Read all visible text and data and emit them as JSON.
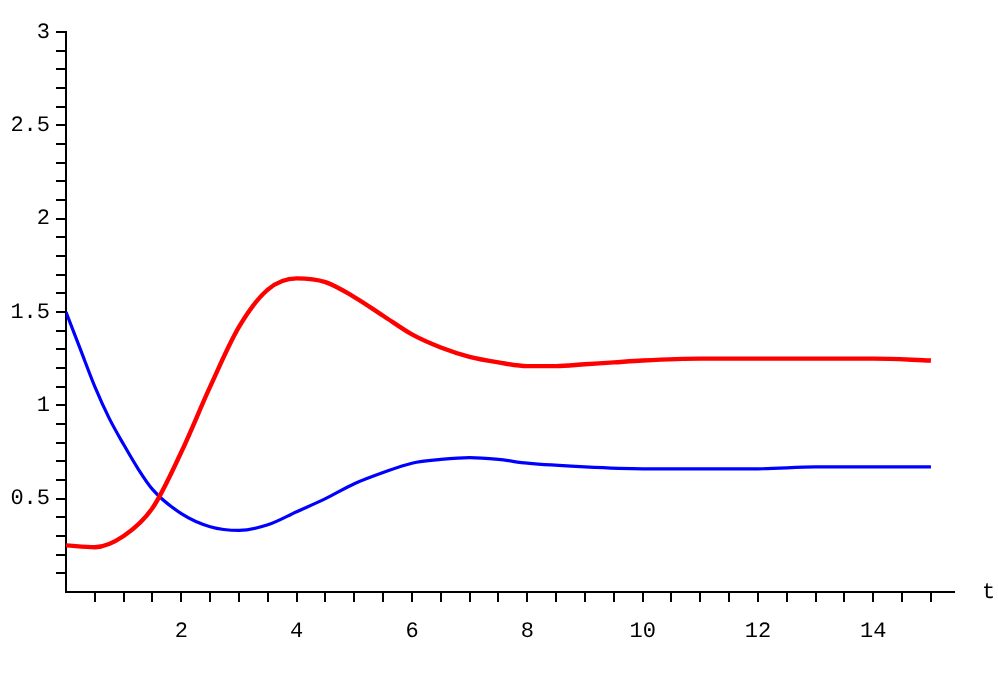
{
  "chart_data": {
    "type": "line",
    "xlabel": "t",
    "xlim": [
      0,
      15.4
    ],
    "ylim": [
      0,
      3
    ],
    "xticks": [
      {
        "value": 0.5,
        "label": null
      },
      {
        "value": 1,
        "label": null
      },
      {
        "value": 1.5,
        "label": null
      },
      2,
      {
        "value": 2.5,
        "label": null
      },
      {
        "value": 3,
        "label": null
      },
      {
        "value": 3.5,
        "label": null
      },
      4,
      {
        "value": 4.5,
        "label": null
      },
      {
        "value": 5,
        "label": null
      },
      {
        "value": 5.5,
        "label": null
      },
      6,
      {
        "value": 6.5,
        "label": null
      },
      {
        "value": 7,
        "label": null
      },
      {
        "value": 7.5,
        "label": null
      },
      8,
      {
        "value": 8.5,
        "label": null
      },
      {
        "value": 9,
        "label": null
      },
      {
        "value": 9.5,
        "label": null
      },
      10,
      {
        "value": 10.5,
        "label": null
      },
      {
        "value": 11,
        "label": null
      },
      {
        "value": 11.5,
        "label": null
      },
      12,
      {
        "value": 12.5,
        "label": null
      },
      {
        "value": 13,
        "label": null
      },
      {
        "value": 13.5,
        "label": null
      },
      14,
      {
        "value": 14.5,
        "label": null
      },
      {
        "value": 15,
        "label": null
      }
    ],
    "yticks": [
      {
        "value": 0.1,
        "label": null
      },
      {
        "value": 0.2,
        "label": null
      },
      {
        "value": 0.3,
        "label": null
      },
      {
        "value": 0.4,
        "label": null
      },
      0.5,
      {
        "value": 0.6,
        "label": null
      },
      {
        "value": 0.7,
        "label": null
      },
      {
        "value": 0.8,
        "label": null
      },
      {
        "value": 0.9,
        "label": null
      },
      1,
      {
        "value": 1.1,
        "label": null
      },
      {
        "value": 1.2,
        "label": null
      },
      {
        "value": 1.3,
        "label": null
      },
      {
        "value": 1.4,
        "label": null
      },
      1.5,
      {
        "value": 1.6,
        "label": null
      },
      {
        "value": 1.7,
        "label": null
      },
      {
        "value": 1.8,
        "label": null
      },
      {
        "value": 1.9,
        "label": null
      },
      2,
      {
        "value": 2.1,
        "label": null
      },
      {
        "value": 2.2,
        "label": null
      },
      {
        "value": 2.3,
        "label": null
      },
      {
        "value": 2.4,
        "label": null
      },
      2.5,
      {
        "value": 2.6,
        "label": null
      },
      {
        "value": 2.7,
        "label": null
      },
      {
        "value": 2.8,
        "label": null
      },
      {
        "value": 2.9,
        "label": null
      },
      3
    ],
    "grid": false,
    "legend": false,
    "marker": "none",
    "line_style": "solid",
    "series": [
      {
        "color": "#ff0000",
        "x": [
          0,
          0.5,
          1,
          1.5,
          2,
          2.5,
          3,
          3.5,
          4,
          4.5,
          5,
          5.5,
          6,
          6.5,
          7,
          7.5,
          8,
          8.5,
          9,
          9.5,
          10,
          11,
          12,
          13,
          14,
          15
        ],
        "values": [
          0.25,
          0.24,
          0.3,
          0.45,
          0.75,
          1.1,
          1.42,
          1.62,
          1.68,
          1.66,
          1.58,
          1.48,
          1.38,
          1.31,
          1.26,
          1.23,
          1.21,
          1.21,
          1.22,
          1.23,
          1.24,
          1.25,
          1.25,
          1.25,
          1.25,
          1.24
        ]
      },
      {
        "color": "#0000ff",
        "x": [
          0,
          0.25,
          0.5,
          0.75,
          1,
          1.25,
          1.5,
          2,
          2.5,
          3,
          3.5,
          4,
          4.5,
          5,
          5.5,
          6,
          6.5,
          7,
          7.5,
          8,
          9,
          10,
          11,
          12,
          13,
          15
        ],
        "values": [
          1.5,
          1.3,
          1.1,
          0.93,
          0.79,
          0.66,
          0.55,
          0.42,
          0.35,
          0.33,
          0.36,
          0.43,
          0.5,
          0.58,
          0.64,
          0.69,
          0.71,
          0.72,
          0.71,
          0.69,
          0.67,
          0.66,
          0.66,
          0.66,
          0.67,
          0.67
        ]
      }
    ]
  }
}
